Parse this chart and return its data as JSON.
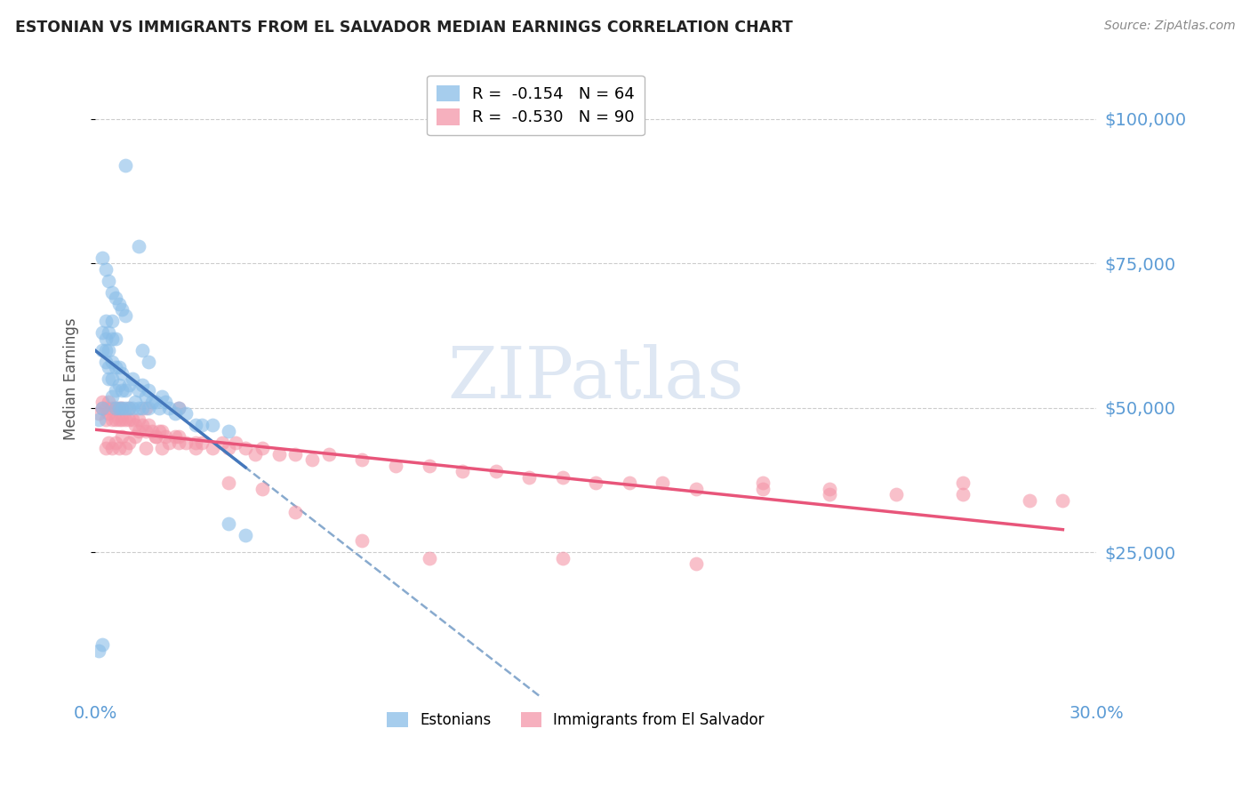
{
  "title": "ESTONIAN VS IMMIGRANTS FROM EL SALVADOR MEDIAN EARNINGS CORRELATION CHART",
  "source": "Source: ZipAtlas.com",
  "ylabel": "Median Earnings",
  "xlim": [
    0.0,
    0.3
  ],
  "ylim": [
    0,
    110000
  ],
  "yticks": [
    25000,
    50000,
    75000,
    100000
  ],
  "ytick_labels": [
    "$25,000",
    "$50,000",
    "$75,000",
    "$100,000"
  ],
  "xticks": [
    0.0,
    0.05,
    0.1,
    0.15,
    0.2,
    0.25,
    0.3
  ],
  "blue_color": "#89bde8",
  "pink_color": "#f496a8",
  "blue_line_color": "#4477bb",
  "pink_line_color": "#e8557a",
  "dashed_line_color": "#88aace",
  "axis_tick_color": "#5b9bd5",
  "grid_color": "#cccccc",
  "title_color": "#222222",
  "watermark_color": "#c8d8ec",
  "legend_r1": "R =  -0.154   N = 64",
  "legend_r2": "R =  -0.530   N = 90",
  "estonian_x": [
    0.001,
    0.002,
    0.002,
    0.002,
    0.003,
    0.003,
    0.003,
    0.003,
    0.004,
    0.004,
    0.004,
    0.004,
    0.005,
    0.005,
    0.005,
    0.005,
    0.005,
    0.006,
    0.006,
    0.006,
    0.006,
    0.007,
    0.007,
    0.007,
    0.008,
    0.008,
    0.008,
    0.009,
    0.009,
    0.01,
    0.01,
    0.011,
    0.011,
    0.012,
    0.013,
    0.013,
    0.014,
    0.014,
    0.015,
    0.016,
    0.016,
    0.017,
    0.018,
    0.019,
    0.02,
    0.021,
    0.022,
    0.024,
    0.025,
    0.027,
    0.03,
    0.032,
    0.035,
    0.04,
    0.002,
    0.003,
    0.004,
    0.005,
    0.006,
    0.007,
    0.008,
    0.009,
    0.014,
    0.016
  ],
  "estonian_y": [
    48000,
    50000,
    60000,
    63000,
    58000,
    60000,
    62000,
    65000,
    55000,
    57000,
    60000,
    63000,
    52000,
    55000,
    58000,
    62000,
    65000,
    50000,
    53000,
    57000,
    62000,
    50000,
    54000,
    57000,
    50000,
    53000,
    56000,
    50000,
    53000,
    50000,
    54000,
    50000,
    55000,
    51000,
    50000,
    53000,
    50000,
    54000,
    52000,
    50000,
    53000,
    51000,
    51000,
    50000,
    52000,
    51000,
    50000,
    49000,
    50000,
    49000,
    47000,
    47000,
    47000,
    46000,
    76000,
    74000,
    72000,
    70000,
    69000,
    68000,
    67000,
    66000,
    60000,
    58000
  ],
  "estonian_y_outliers": [
    92000,
    78000,
    30000,
    28000,
    8000,
    9000
  ],
  "estonian_x_outliers": [
    0.009,
    0.013,
    0.04,
    0.045,
    0.001,
    0.002
  ],
  "salvador_x": [
    0.001,
    0.002,
    0.002,
    0.003,
    0.003,
    0.004,
    0.004,
    0.005,
    0.005,
    0.006,
    0.006,
    0.007,
    0.007,
    0.008,
    0.008,
    0.009,
    0.01,
    0.01,
    0.011,
    0.012,
    0.013,
    0.013,
    0.014,
    0.015,
    0.016,
    0.017,
    0.018,
    0.019,
    0.02,
    0.021,
    0.022,
    0.024,
    0.025,
    0.027,
    0.03,
    0.032,
    0.035,
    0.038,
    0.04,
    0.042,
    0.045,
    0.048,
    0.05,
    0.055,
    0.06,
    0.065,
    0.07,
    0.08,
    0.09,
    0.1,
    0.11,
    0.12,
    0.13,
    0.14,
    0.15,
    0.16,
    0.17,
    0.18,
    0.2,
    0.22,
    0.24,
    0.26,
    0.28,
    0.29,
    0.003,
    0.004,
    0.005,
    0.006,
    0.007,
    0.008,
    0.009,
    0.01,
    0.012,
    0.015,
    0.018,
    0.02,
    0.025,
    0.03,
    0.04,
    0.05,
    0.06,
    0.08,
    0.1,
    0.14,
    0.18,
    0.22,
    0.26,
    0.015,
    0.025,
    0.2
  ],
  "salvador_y": [
    49000,
    50000,
    51000,
    48000,
    50000,
    49000,
    51000,
    48000,
    50000,
    48000,
    50000,
    48000,
    50000,
    48000,
    50000,
    48000,
    48000,
    50000,
    48000,
    47000,
    48000,
    46000,
    47000,
    46000,
    47000,
    46000,
    45000,
    46000,
    46000,
    45000,
    44000,
    45000,
    45000,
    44000,
    44000,
    44000,
    43000,
    44000,
    43000,
    44000,
    43000,
    42000,
    43000,
    42000,
    42000,
    41000,
    42000,
    41000,
    40000,
    40000,
    39000,
    39000,
    38000,
    38000,
    37000,
    37000,
    37000,
    36000,
    36000,
    35000,
    35000,
    35000,
    34000,
    34000,
    43000,
    44000,
    43000,
    44000,
    43000,
    45000,
    43000,
    44000,
    45000,
    43000,
    45000,
    43000,
    44000,
    43000,
    37000,
    36000,
    32000,
    27000,
    24000,
    24000,
    23000,
    36000,
    37000,
    50000,
    50000,
    37000
  ]
}
